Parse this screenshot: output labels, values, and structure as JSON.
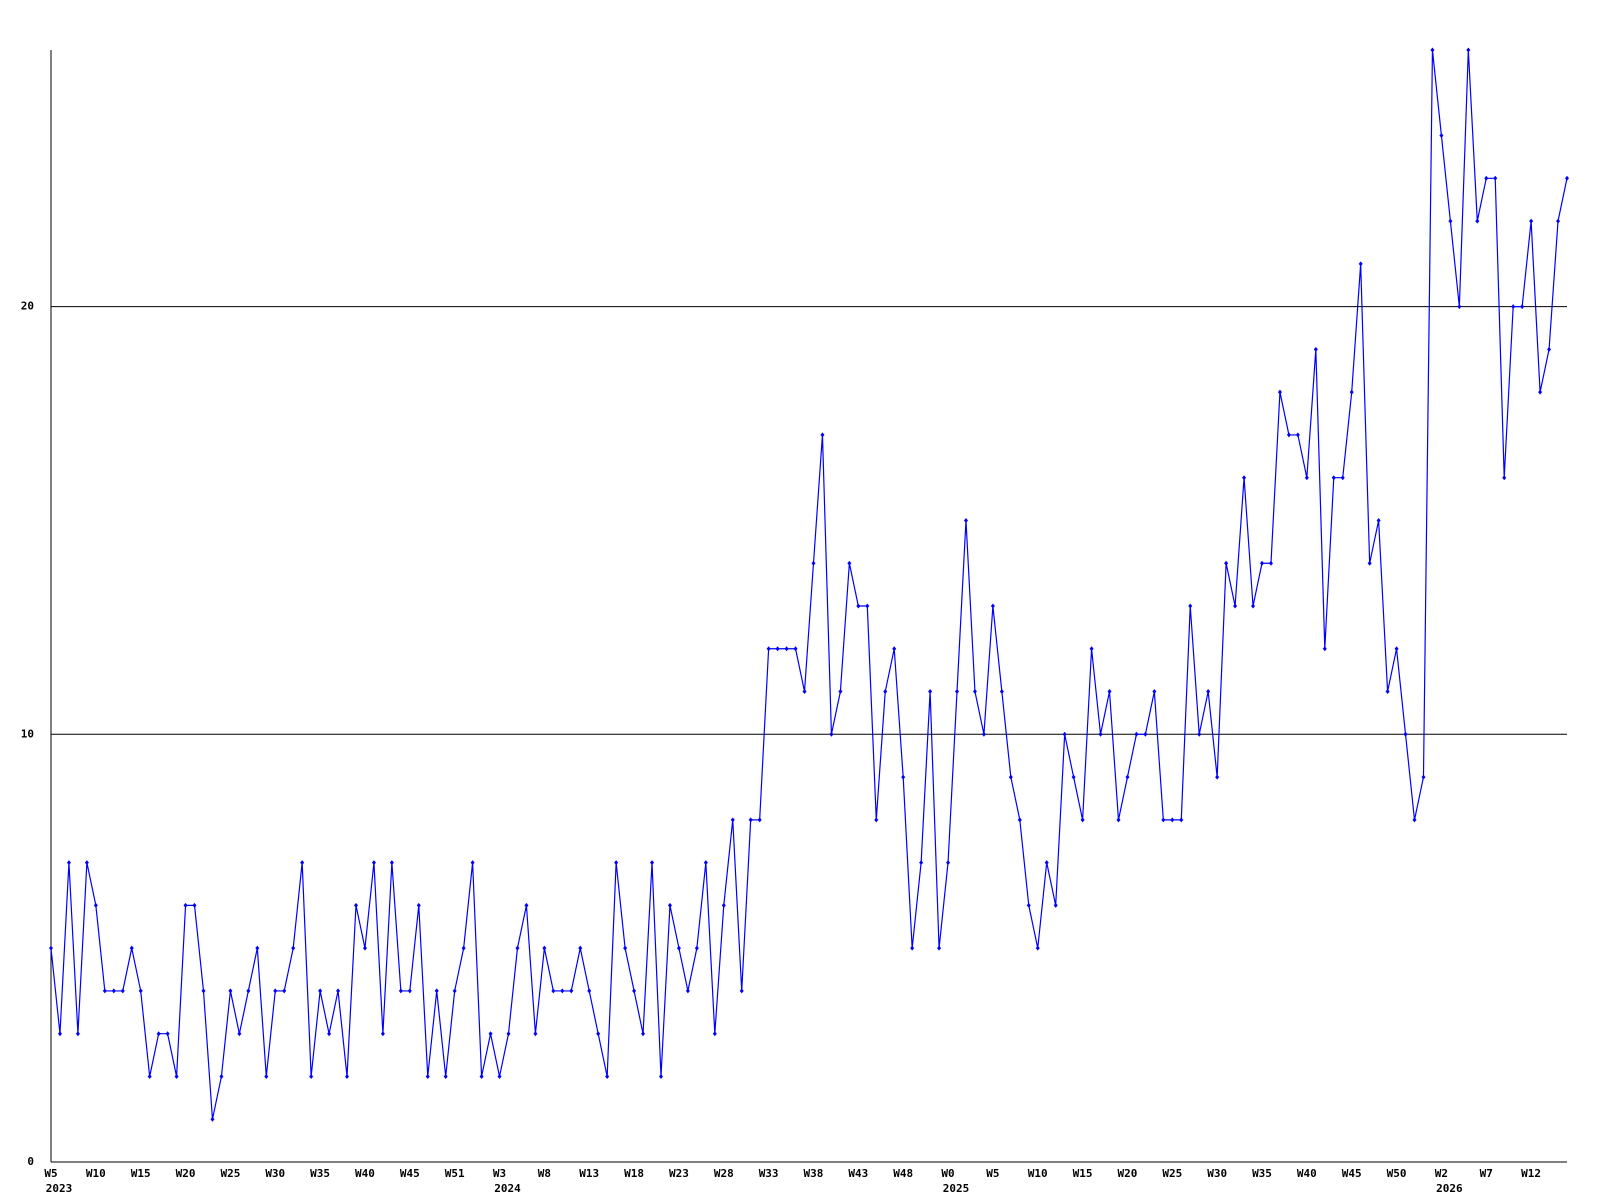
{
  "chart_data": {
    "type": "line",
    "categories": [
      "W5",
      null,
      null,
      null,
      null,
      "W10",
      null,
      null,
      null,
      null,
      "W15",
      null,
      null,
      null,
      null,
      "W20",
      null,
      null,
      null,
      null,
      "W25",
      null,
      null,
      null,
      null,
      "W30",
      null,
      null,
      null,
      null,
      "W35",
      null,
      null,
      null,
      null,
      "W40",
      null,
      null,
      null,
      null,
      "W45",
      null,
      null,
      null,
      null,
      "W51",
      null,
      null,
      null,
      null,
      "W3",
      null,
      null,
      null,
      null,
      "W8",
      null,
      null,
      null,
      null,
      "W13",
      null,
      null,
      null,
      null,
      "W18",
      null,
      null,
      null,
      null,
      "W23",
      null,
      null,
      null,
      null,
      "W28",
      null,
      null,
      null,
      null,
      "W33",
      null,
      null,
      null,
      null,
      "W38",
      null,
      null,
      null,
      null,
      "W43",
      null,
      null,
      null,
      null,
      "W48",
      null,
      null,
      null,
      null,
      "W0",
      null,
      null,
      null,
      null,
      "W5",
      null,
      null,
      null,
      null,
      "W10",
      null,
      null,
      null,
      null,
      "W15",
      null,
      null,
      null,
      null,
      "W20",
      null,
      null,
      null,
      null,
      "W25",
      null,
      null,
      null,
      null,
      "W30",
      null,
      null,
      null,
      null,
      "W35",
      null,
      null,
      null,
      null,
      "W40",
      null,
      null,
      null,
      null,
      "W45",
      null,
      null,
      null,
      null,
      "W50",
      null,
      null,
      null,
      null,
      "W2",
      null,
      null,
      null,
      null,
      "W7",
      null,
      null,
      null,
      null,
      "W12",
      null,
      null,
      null,
      null
    ],
    "years": [
      "2023",
      null,
      null,
      null,
      null,
      null,
      null,
      null,
      null,
      null,
      null,
      null,
      null,
      null,
      null,
      null,
      null,
      null,
      null,
      null,
      null,
      null,
      null,
      null,
      null,
      null,
      null,
      null,
      null,
      null,
      null,
      null,
      null,
      null,
      null,
      null,
      null,
      null,
      null,
      null,
      null,
      null,
      null,
      null,
      null,
      null,
      null,
      null,
      null,
      null,
      "2024",
      null,
      null,
      null,
      null,
      null,
      null,
      null,
      null,
      null,
      null,
      null,
      null,
      null,
      null,
      null,
      null,
      null,
      null,
      null,
      null,
      null,
      null,
      null,
      null,
      null,
      null,
      null,
      null,
      null,
      null,
      null,
      null,
      null,
      null,
      null,
      null,
      null,
      null,
      null,
      null,
      null,
      null,
      null,
      null,
      null,
      null,
      null,
      null,
      null,
      "2025",
      null,
      null,
      null,
      null,
      null,
      null,
      null,
      null,
      null,
      null,
      null,
      null,
      null,
      null,
      null,
      null,
      null,
      null,
      null,
      null,
      null,
      null,
      null,
      null,
      null,
      null,
      null,
      null,
      null,
      null,
      null,
      null,
      null,
      null,
      null,
      null,
      null,
      null,
      null,
      null,
      null,
      null,
      null,
      null,
      null,
      null,
      null,
      null,
      null,
      null,
      null,
      null,
      null,
      null,
      "2026",
      null,
      null,
      null,
      null,
      null,
      null,
      null,
      null,
      null,
      null,
      null,
      null,
      null,
      null
    ],
    "series": [
      {
        "color": "#0000ff",
        "values": [
          5,
          3,
          7,
          3,
          7,
          6,
          4,
          4,
          4,
          5,
          4,
          2,
          3,
          3,
          2,
          6,
          6,
          4,
          1,
          2,
          4,
          3,
          4,
          5,
          2,
          4,
          4,
          5,
          7,
          2,
          4,
          3,
          4,
          2,
          6,
          5,
          7,
          3,
          7,
          4,
          4,
          6,
          2,
          4,
          2,
          4,
          5,
          7,
          2,
          3,
          2,
          3,
          5,
          6,
          3,
          5,
          4,
          4,
          4,
          5,
          4,
          3,
          2,
          7,
          5,
          4,
          3,
          7,
          2,
          6,
          5,
          4,
          5,
          7,
          3,
          6,
          8,
          4,
          8,
          8,
          12,
          12,
          12,
          12,
          11,
          14,
          17,
          10,
          11,
          14,
          13,
          13,
          8,
          11,
          12,
          9,
          5,
          7,
          11,
          5,
          7,
          11,
          15,
          11,
          10,
          13,
          11,
          9,
          8,
          6,
          5,
          7,
          6,
          10,
          9,
          8,
          12,
          10,
          11,
          8,
          9,
          10,
          10,
          11,
          8,
          8,
          8,
          13,
          10,
          11,
          9,
          14,
          13,
          16,
          13,
          14,
          14,
          18,
          17,
          17,
          16,
          19,
          12,
          16,
          16,
          18,
          21,
          14,
          15,
          11,
          12,
          10,
          8,
          9,
          26,
          24,
          22,
          20,
          26,
          22,
          23,
          23,
          16,
          20,
          20,
          22,
          18,
          19,
          22,
          23
        ]
      }
    ],
    "ylim": [
      0,
      26
    ],
    "yticks": [
      0,
      10,
      20
    ],
    "grid": true
  }
}
